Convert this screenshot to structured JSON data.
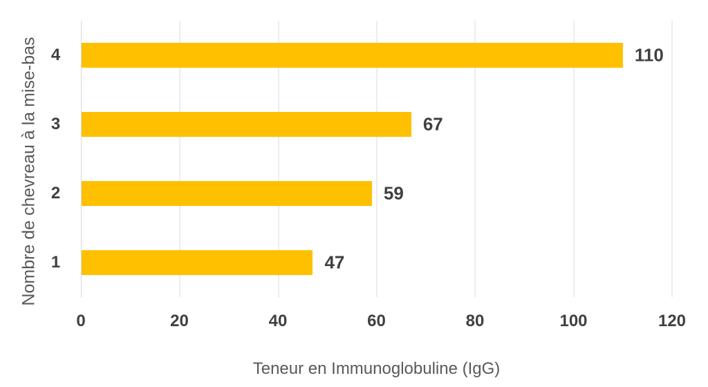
{
  "chart_data": {
    "type": "bar",
    "orientation": "horizontal",
    "categories": [
      "4",
      "3",
      "2",
      "1"
    ],
    "values": [
      110,
      67,
      59,
      47
    ],
    "data_labels": [
      "110",
      "67",
      "59",
      "47"
    ],
    "xlabel": "Teneur en Immunoglobuline (IgG)",
    "ylabel": "Nombre de chevreau à la mise-bas",
    "xlim": [
      0,
      120
    ],
    "xticks": [
      0,
      20,
      40,
      60,
      80,
      100,
      120
    ],
    "grid": true,
    "legend": false,
    "colors": {
      "bar": "#FFC000",
      "value_label": "#404040",
      "tick_label": "#404040",
      "axis_title": "#595959",
      "gridline": "#D9D9D9",
      "background": "#FFFFFF"
    }
  }
}
